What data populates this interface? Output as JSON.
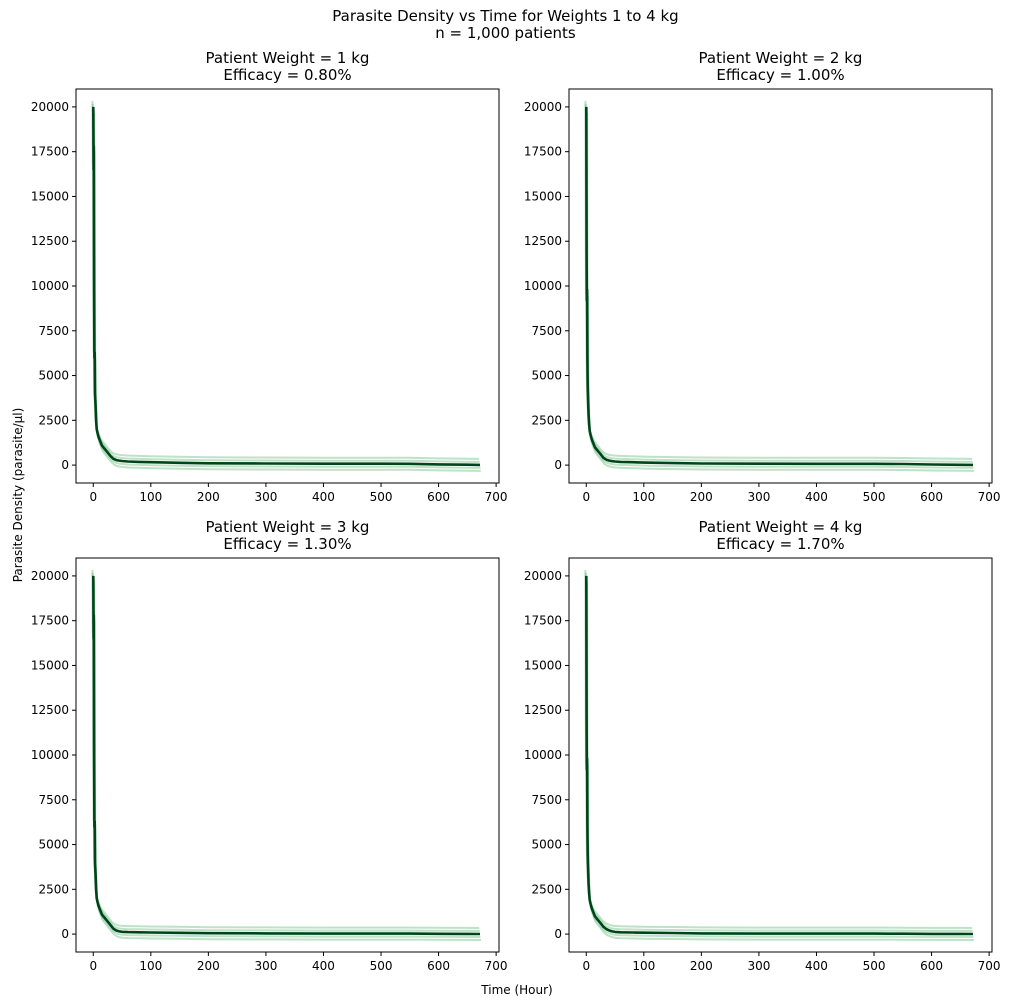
{
  "figure": {
    "suptitle_line1": "Parasite Density vs Time for Weights 1 to 4 kg",
    "suptitle_line2": "n = 1,000 patients",
    "ylabel": "Parasite Density (parasite/μl)",
    "xlabel": "Time (Hour)",
    "line_color": "#00441b",
    "band_color": "#41ab5d"
  },
  "chart_data": [
    {
      "type": "line",
      "title_line1": "Patient Weight = 1 kg",
      "title_line2": "Efficacy = 0.80%",
      "xlim": [
        -30,
        705
      ],
      "ylim": [
        -1000,
        21000
      ],
      "xticks": [
        0,
        100,
        200,
        300,
        400,
        500,
        600,
        700
      ],
      "yticks": [
        0,
        2500,
        5000,
        7500,
        10000,
        12500,
        15000,
        17500,
        20000
      ],
      "series": [
        {
          "x": [
            0,
            0.5,
            1,
            1.5,
            2,
            2.5,
            3,
            4,
            5,
            6,
            8,
            10,
            15,
            20,
            25,
            30,
            35,
            40,
            45,
            50,
            60,
            80,
            100,
            150,
            200,
            300,
            400,
            500,
            550,
            600,
            650,
            672
          ],
          "y": [
            20000,
            16500,
            17800,
            10000,
            6000,
            6300,
            4000,
            3300,
            2500,
            2000,
            1700,
            1500,
            1100,
            900,
            700,
            500,
            350,
            280,
            250,
            230,
            200,
            180,
            160,
            130,
            100,
            90,
            80,
            80,
            70,
            40,
            20,
            10
          ]
        }
      ]
    },
    {
      "type": "line",
      "title_line1": "Patient Weight = 2 kg",
      "title_line2": "Efficacy = 1.00%",
      "xlim": [
        -30,
        705
      ],
      "ylim": [
        -1000,
        21000
      ],
      "xticks": [
        0,
        100,
        200,
        300,
        400,
        500,
        600,
        700
      ],
      "yticks": [
        0,
        2500,
        5000,
        7500,
        10000,
        12500,
        15000,
        17500,
        20000
      ],
      "series": [
        {
          "x": [
            0,
            0.5,
            1,
            1.5,
            2,
            2.5,
            3,
            4,
            5,
            6,
            8,
            10,
            15,
            20,
            25,
            30,
            35,
            40,
            45,
            50,
            60,
            80,
            100,
            150,
            200,
            300,
            400,
            500,
            550,
            600,
            650,
            672
          ],
          "y": [
            20000,
            12000,
            9200,
            9800,
            6000,
            4500,
            3800,
            2800,
            2300,
            1900,
            1600,
            1400,
            1000,
            800,
            600,
            400,
            300,
            250,
            220,
            200,
            180,
            160,
            140,
            110,
            90,
            80,
            70,
            70,
            60,
            35,
            15,
            10
          ]
        }
      ]
    },
    {
      "type": "line",
      "title_line1": "Patient Weight = 3 kg",
      "title_line2": "Efficacy = 1.30%",
      "xlim": [
        -30,
        705
      ],
      "ylim": [
        -1000,
        21000
      ],
      "xticks": [
        0,
        100,
        200,
        300,
        400,
        500,
        600,
        700
      ],
      "yticks": [
        0,
        2500,
        5000,
        7500,
        10000,
        12500,
        15000,
        17500,
        20000
      ],
      "series": [
        {
          "x": [
            0,
            0.5,
            1,
            1.5,
            2,
            2.5,
            3,
            4,
            5,
            6,
            8,
            10,
            15,
            20,
            25,
            30,
            35,
            40,
            45,
            50,
            60,
            80,
            100,
            150,
            200,
            300,
            400,
            500,
            550,
            600,
            650,
            672
          ],
          "y": [
            20000,
            16500,
            17800,
            10000,
            6000,
            6300,
            4000,
            3300,
            2500,
            2000,
            1700,
            1500,
            1100,
            900,
            700,
            500,
            300,
            200,
            150,
            130,
            110,
            100,
            90,
            70,
            50,
            40,
            30,
            30,
            25,
            15,
            10,
            5
          ]
        }
      ]
    },
    {
      "type": "line",
      "title_line1": "Patient Weight = 4 kg",
      "title_line2": "Efficacy = 1.70%",
      "xlim": [
        -30,
        705
      ],
      "ylim": [
        -1000,
        21000
      ],
      "xticks": [
        0,
        100,
        200,
        300,
        400,
        500,
        600,
        700
      ],
      "yticks": [
        0,
        2500,
        5000,
        7500,
        10000,
        12500,
        15000,
        17500,
        20000
      ],
      "series": [
        {
          "x": [
            0,
            0.5,
            1,
            1.5,
            2,
            2.5,
            3,
            4,
            5,
            6,
            8,
            10,
            15,
            20,
            25,
            30,
            35,
            40,
            45,
            50,
            60,
            80,
            100,
            150,
            200,
            300,
            400,
            500,
            550,
            600,
            650,
            672
          ],
          "y": [
            20000,
            12000,
            9200,
            9800,
            6000,
            4500,
            3800,
            2800,
            2300,
            1900,
            1600,
            1400,
            1000,
            800,
            600,
            400,
            280,
            200,
            150,
            120,
            100,
            90,
            80,
            60,
            40,
            30,
            25,
            25,
            20,
            12,
            8,
            5
          ]
        }
      ]
    }
  ]
}
